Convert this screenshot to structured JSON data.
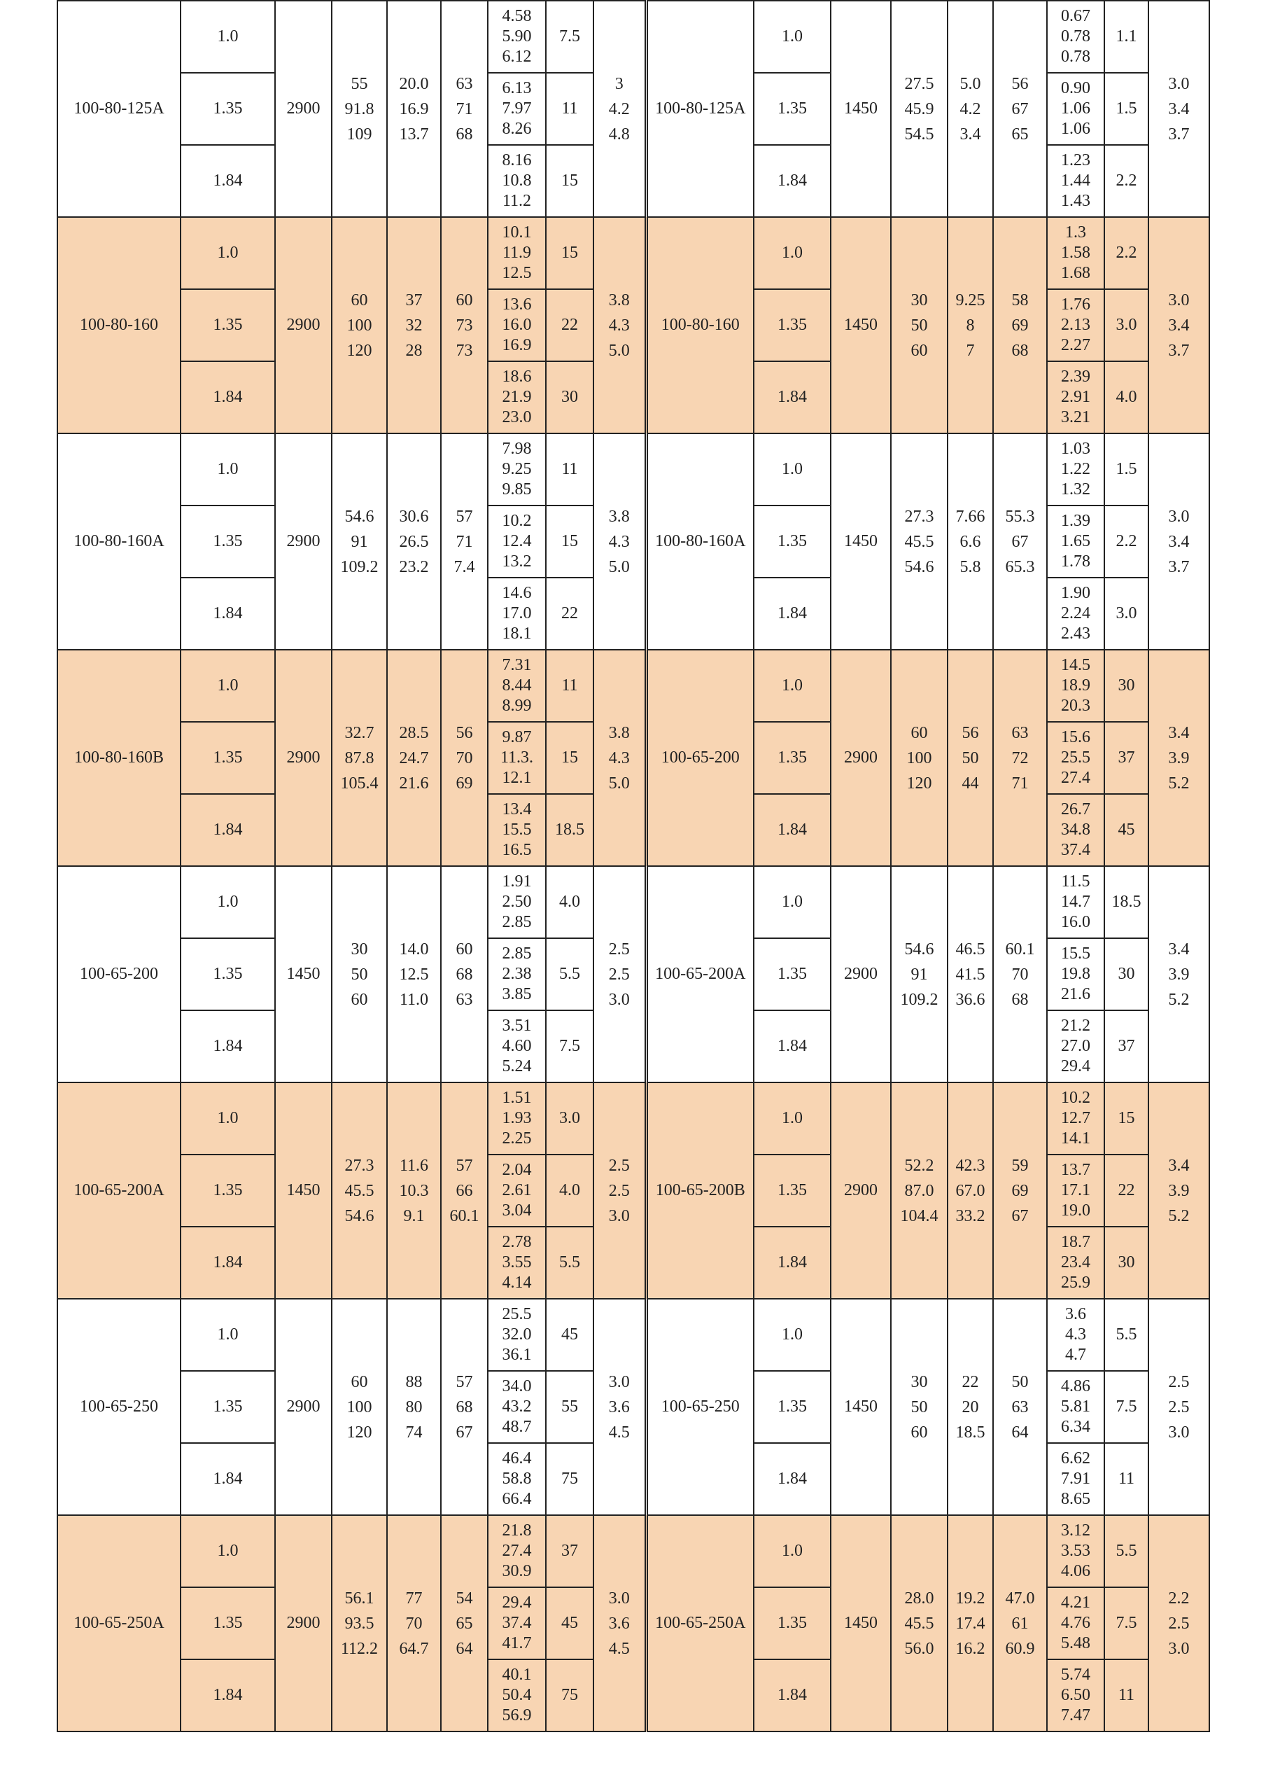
{
  "colors": {
    "shaded_row": "#f8d5b3",
    "border": "#222222"
  },
  "densities": [
    "1.0",
    "1.35",
    "1.84"
  ],
  "groups": [
    {
      "shaded": false,
      "left": {
        "model": "100-80-125A",
        "speed": "2900",
        "flow": [
          "55",
          "91.8",
          "109"
        ],
        "head": [
          "20.0",
          "16.9",
          "13.7"
        ],
        "eff": [
          "63",
          "71",
          "68"
        ],
        "power": [
          [
            "4.58",
            "5.90",
            "6.12"
          ],
          [
            "6.13",
            "7.97",
            "8.26"
          ],
          [
            "8.16",
            "10.8",
            "11.2"
          ]
        ],
        "motor": [
          "7.5",
          "11",
          "15"
        ],
        "npsh": [
          "3",
          "4.2",
          "4.8"
        ]
      },
      "right": {
        "model": "100-80-125A",
        "speed": "1450",
        "flow": [
          "27.5",
          "45.9",
          "54.5"
        ],
        "head": [
          "5.0",
          "4.2",
          "3.4"
        ],
        "eff": [
          "56",
          "67",
          "65"
        ],
        "power": [
          [
            "0.67",
            "0.78",
            "0.78"
          ],
          [
            "0.90",
            "1.06",
            "1.06"
          ],
          [
            "1.23",
            "1.44",
            "1.43"
          ]
        ],
        "motor": [
          "1.1",
          "1.5",
          "2.2"
        ],
        "npsh": [
          "3.0",
          "3.4",
          "3.7"
        ]
      }
    },
    {
      "shaded": true,
      "left": {
        "model": "100-80-160",
        "speed": "2900",
        "flow": [
          "60",
          "100",
          "120"
        ],
        "head": [
          "37",
          "32",
          "28"
        ],
        "eff": [
          "60",
          "73",
          "73"
        ],
        "power": [
          [
            "10.1",
            "11.9",
            "12.5"
          ],
          [
            "13.6",
            "16.0",
            "16.9"
          ],
          [
            "18.6",
            "21.9",
            "23.0"
          ]
        ],
        "motor": [
          "15",
          "22",
          "30"
        ],
        "npsh": [
          "3.8",
          "4.3",
          "5.0"
        ]
      },
      "right": {
        "model": "100-80-160",
        "speed": "1450",
        "flow": [
          "30",
          "50",
          "60"
        ],
        "head": [
          "9.25",
          "8",
          "7"
        ],
        "eff": [
          "58",
          "69",
          "68"
        ],
        "power": [
          [
            "1.3",
            "1.58",
            "1.68"
          ],
          [
            "1.76",
            "2.13",
            "2.27"
          ],
          [
            "2.39",
            "2.91",
            "3.21"
          ]
        ],
        "motor": [
          "2.2",
          "3.0",
          "4.0"
        ],
        "npsh": [
          "3.0",
          "3.4",
          "3.7"
        ]
      }
    },
    {
      "shaded": false,
      "left": {
        "model": "100-80-160A",
        "speed": "2900",
        "flow": [
          "54.6",
          "91",
          "109.2"
        ],
        "head": [
          "30.6",
          "26.5",
          "23.2"
        ],
        "eff": [
          "57",
          "71",
          "7.4"
        ],
        "power": [
          [
            "7.98",
            "9.25",
            "9.85"
          ],
          [
            "10.2",
            "12.4",
            "13.2"
          ],
          [
            "14.6",
            "17.0",
            "18.1"
          ]
        ],
        "motor": [
          "11",
          "15",
          "22"
        ],
        "npsh": [
          "3.8",
          "4.3",
          "5.0"
        ]
      },
      "right": {
        "model": "100-80-160A",
        "speed": "1450",
        "flow": [
          "27.3",
          "45.5",
          "54.6"
        ],
        "head": [
          "7.66",
          "6.6",
          "5.8"
        ],
        "eff": [
          "55.3",
          "67",
          "65.3"
        ],
        "power": [
          [
            "1.03",
            "1.22",
            "1.32"
          ],
          [
            "1.39",
            "1.65",
            "1.78"
          ],
          [
            "1.90",
            "2.24",
            "2.43"
          ]
        ],
        "motor": [
          "1.5",
          "2.2",
          "3.0"
        ],
        "npsh": [
          "3.0",
          "3.4",
          "3.7"
        ]
      }
    },
    {
      "shaded": true,
      "left": {
        "model": "100-80-160B",
        "speed": "2900",
        "flow": [
          "32.7",
          "87.8",
          "105.4"
        ],
        "head": [
          "28.5",
          "24.7",
          "21.6"
        ],
        "eff": [
          "56",
          "70",
          "69"
        ],
        "power": [
          [
            "7.31",
            "8.44",
            "8.99"
          ],
          [
            "9.87",
            "11.3.",
            "12.1"
          ],
          [
            "13.4",
            "15.5",
            "16.5"
          ]
        ],
        "motor": [
          "11",
          "15",
          "18.5"
        ],
        "npsh": [
          "3.8",
          "4.3",
          "5.0"
        ]
      },
      "right": {
        "model": "100-65-200",
        "speed": "2900",
        "flow": [
          "60",
          "100",
          "120"
        ],
        "head": [
          "56",
          "50",
          "44"
        ],
        "eff": [
          "63",
          "72",
          "71"
        ],
        "power": [
          [
            "14.5",
            "18.9",
            "20.3"
          ],
          [
            "15.6",
            "25.5",
            "27.4"
          ],
          [
            "26.7",
            "34.8",
            "37.4"
          ]
        ],
        "motor": [
          "30",
          "37",
          "45"
        ],
        "npsh": [
          "3.4",
          "3.9",
          "5.2"
        ]
      }
    },
    {
      "shaded": false,
      "left": {
        "model": "100-65-200",
        "speed": "1450",
        "flow": [
          "30",
          "50",
          "60"
        ],
        "head": [
          "14.0",
          "12.5",
          "11.0"
        ],
        "eff": [
          "60",
          "68",
          "63"
        ],
        "power": [
          [
            "1.91",
            "2.50",
            "2.85"
          ],
          [
            "2.85",
            "2.38",
            "3.85"
          ],
          [
            "3.51",
            "4.60",
            "5.24"
          ]
        ],
        "motor": [
          "4.0",
          "5.5",
          "7.5"
        ],
        "npsh": [
          "2.5",
          "2.5",
          "3.0"
        ]
      },
      "right": {
        "model": "100-65-200A",
        "speed": "2900",
        "flow": [
          "54.6",
          "91",
          "109.2"
        ],
        "head": [
          "46.5",
          "41.5",
          "36.6"
        ],
        "eff": [
          "60.1",
          "70",
          "68"
        ],
        "power": [
          [
            "11.5",
            "14.7",
            "16.0"
          ],
          [
            "15.5",
            "19.8",
            "21.6"
          ],
          [
            "21.2",
            "27.0",
            "29.4"
          ]
        ],
        "motor": [
          "18.5",
          "30",
          "37"
        ],
        "npsh": [
          "3.4",
          "3.9",
          "5.2"
        ]
      }
    },
    {
      "shaded": true,
      "left": {
        "model": "100-65-200A",
        "speed": "1450",
        "flow": [
          "27.3",
          "45.5",
          "54.6"
        ],
        "head": [
          "11.6",
          "10.3",
          "9.1"
        ],
        "eff": [
          "57",
          "66",
          "60.1"
        ],
        "power": [
          [
            "1.51",
            "1.93",
            "2.25"
          ],
          [
            "2.04",
            "2.61",
            "3.04"
          ],
          [
            "2.78",
            "3.55",
            "4.14"
          ]
        ],
        "motor": [
          "3.0",
          "4.0",
          "5.5"
        ],
        "npsh": [
          "2.5",
          "2.5",
          "3.0"
        ]
      },
      "right": {
        "model": "100-65-200B",
        "speed": "2900",
        "flow": [
          "52.2",
          "87.0",
          "104.4"
        ],
        "head": [
          "42.3",
          "67.0",
          "33.2"
        ],
        "eff": [
          "59",
          "69",
          "67"
        ],
        "power": [
          [
            "10.2",
            "12.7",
            "14.1"
          ],
          [
            "13.7",
            "17.1",
            "19.0"
          ],
          [
            "18.7",
            "23.4",
            "25.9"
          ]
        ],
        "motor": [
          "15",
          "22",
          "30"
        ],
        "npsh": [
          "3.4",
          "3.9",
          "5.2"
        ]
      }
    },
    {
      "shaded": false,
      "left": {
        "model": "100-65-250",
        "speed": "2900",
        "flow": [
          "60",
          "100",
          "120"
        ],
        "head": [
          "88",
          "80",
          "74"
        ],
        "eff": [
          "57",
          "68",
          "67"
        ],
        "power": [
          [
            "25.5",
            "32.0",
            "36.1"
          ],
          [
            "34.0",
            "43.2",
            "48.7"
          ],
          [
            "46.4",
            "58.8",
            "66.4"
          ]
        ],
        "motor": [
          "45",
          "55",
          "75"
        ],
        "npsh": [
          "3.0",
          "3.6",
          "4.5"
        ]
      },
      "right": {
        "model": "100-65-250",
        "speed": "1450",
        "flow": [
          "30",
          "50",
          "60"
        ],
        "head": [
          "22",
          "20",
          "18.5"
        ],
        "eff": [
          "50",
          "63",
          "64"
        ],
        "power": [
          [
            "3.6",
            "4.3",
            "4.7"
          ],
          [
            "4.86",
            "5.81",
            "6.34"
          ],
          [
            "6.62",
            "7.91",
            "8.65"
          ]
        ],
        "motor": [
          "5.5",
          "7.5",
          "11"
        ],
        "npsh": [
          "2.5",
          "2.5",
          "3.0"
        ]
      }
    },
    {
      "shaded": true,
      "left": {
        "model": "100-65-250A",
        "speed": "2900",
        "flow": [
          "56.1",
          "93.5",
          "112.2"
        ],
        "head": [
          "77",
          "70",
          "64.7"
        ],
        "eff": [
          "54",
          "65",
          "64"
        ],
        "power": [
          [
            "21.8",
            "27.4",
            "30.9"
          ],
          [
            "29.4",
            "37.4",
            "41.7"
          ],
          [
            "40.1",
            "50.4",
            "56.9"
          ]
        ],
        "motor": [
          "37",
          "45",
          "75"
        ],
        "npsh": [
          "3.0",
          "3.6",
          "4.5"
        ]
      },
      "right": {
        "model": "100-65-250A",
        "speed": "1450",
        "flow": [
          "28.0",
          "45.5",
          "56.0"
        ],
        "head": [
          "19.2",
          "17.4",
          "16.2"
        ],
        "eff": [
          "47.0",
          "61",
          "60.9"
        ],
        "power": [
          [
            "3.12",
            "3.53",
            "4.06"
          ],
          [
            "4.21",
            "4.76",
            "5.48"
          ],
          [
            "5.74",
            "6.50",
            "7.47"
          ]
        ],
        "motor": [
          "5.5",
          "7.5",
          "11"
        ],
        "npsh": [
          "2.2",
          "2.5",
          "3.0"
        ]
      }
    }
  ]
}
